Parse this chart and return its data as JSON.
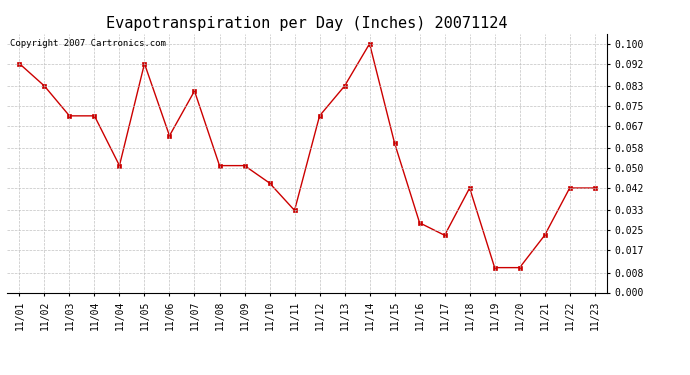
{
  "title": "Evapotranspiration per Day (Inches) 20071124",
  "copyright": "Copyright 2007 Cartronics.com",
  "x_labels": [
    "11/01",
    "11/02",
    "11/03",
    "11/04",
    "11/04",
    "11/05",
    "11/06",
    "11/07",
    "11/08",
    "11/09",
    "11/10",
    "11/11",
    "11/12",
    "11/13",
    "11/14",
    "11/15",
    "11/16",
    "11/17",
    "11/18",
    "11/19",
    "11/20",
    "11/21",
    "11/22",
    "11/23"
  ],
  "y_values": [
    0.092,
    0.083,
    0.071,
    0.071,
    0.051,
    0.092,
    0.063,
    0.081,
    0.051,
    0.051,
    0.044,
    0.033,
    0.071,
    0.083,
    0.1,
    0.06,
    0.028,
    0.023,
    0.042,
    0.01,
    0.01,
    0.023,
    0.042,
    0.042
  ],
  "y_ticks": [
    0.0,
    0.008,
    0.017,
    0.025,
    0.033,
    0.042,
    0.05,
    0.058,
    0.067,
    0.075,
    0.083,
    0.092,
    0.1
  ],
  "line_color": "#cc0000",
  "marker": "s",
  "marker_size": 2.5,
  "background_color": "#ffffff",
  "grid_color": "#bbbbbb",
  "title_fontsize": 11,
  "copyright_fontsize": 6.5,
  "tick_fontsize": 7,
  "ylim": [
    0.0,
    0.104
  ],
  "xlim": [
    -0.5,
    23.5
  ]
}
